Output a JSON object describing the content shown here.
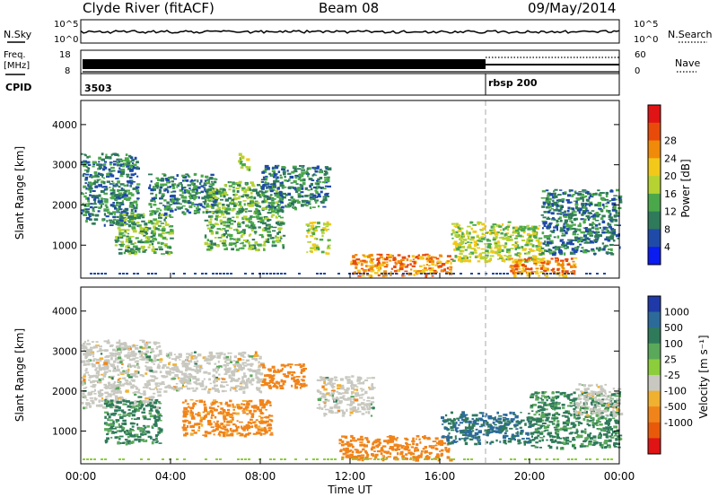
{
  "header": {
    "station": "Clyde River (fitACF)",
    "beam": "Beam 08",
    "date": "09/May/2014"
  },
  "top_panels": {
    "nsky_label": "N.Sky",
    "nsky_ticks": [
      "10^5",
      "10^0"
    ],
    "nsky_right_ticks": [
      "10^5",
      "10^0"
    ],
    "nsearch_label": "N.Search",
    "freq_label_1": "Freq.",
    "freq_label_2": "[MHz]",
    "freq_ticks": [
      "18",
      "8"
    ],
    "nave_ticks": [
      "60",
      "0"
    ],
    "nave_label": "Nave",
    "cpid_label": "CPID",
    "cpid_1": "3503",
    "cpid_2": "rbsp 200"
  },
  "axes": {
    "ylabel": "Slant Range [km]",
    "xlabel": "Time UT",
    "yticks": [
      "1000",
      "2000",
      "3000",
      "4000"
    ],
    "xticks": [
      "00:00",
      "04:00",
      "08:00",
      "12:00",
      "16:00",
      "20:00",
      "00:00"
    ]
  },
  "colorbars": {
    "power": {
      "label": "Power [dB]",
      "ticks": [
        "4",
        "8",
        "12",
        "16",
        "20",
        "24",
        "28"
      ],
      "colors": [
        "#0a1cf0",
        "#1f4aa8",
        "#2f7a5a",
        "#4aa84a",
        "#b5d232",
        "#f2c81a",
        "#f08a0a",
        "#e84a0a",
        "#e01414"
      ]
    },
    "velocity": {
      "label": "Velocity [m s⁻¹]",
      "ticks": [
        "1000",
        "500",
        "100",
        "25",
        "-25",
        "-100",
        "-500",
        "-1000"
      ],
      "colors": [
        "#1f3aa8",
        "#2c6a9a",
        "#2f7a5a",
        "#5aa85a",
        "#8ccd3c",
        "#c8c8c0",
        "#f0b030",
        "#f0841a",
        "#e85a0a",
        "#e01414"
      ]
    }
  },
  "chart_data": {
    "type": "heatmap",
    "x_unit": "hours UT",
    "y_unit": "km",
    "xlim": [
      0,
      24
    ],
    "ylim": [
      180,
      4600
    ],
    "panels": [
      {
        "name": "Power",
        "regions": [
          {
            "t0": 0.0,
            "t1": 2.5,
            "r0": 1500,
            "r1": 3300,
            "level": 10
          },
          {
            "t0": 1.5,
            "t1": 4.0,
            "r0": 800,
            "r1": 1800,
            "level": 16
          },
          {
            "t0": 3.0,
            "t1": 6.0,
            "r0": 1800,
            "r1": 2800,
            "level": 10
          },
          {
            "t0": 5.5,
            "t1": 9.0,
            "r0": 900,
            "r1": 2600,
            "level": 14
          },
          {
            "t0": 7.0,
            "t1": 7.5,
            "r0": 2900,
            "r1": 3300,
            "level": 18
          },
          {
            "t0": 8.0,
            "t1": 11.0,
            "r0": 1900,
            "r1": 3000,
            "level": 10
          },
          {
            "t0": 10.0,
            "t1": 11.0,
            "r0": 800,
            "r1": 1600,
            "level": 18
          },
          {
            "t0": 12.0,
            "t1": 16.5,
            "r0": 250,
            "r1": 800,
            "level": 26
          },
          {
            "t0": 16.5,
            "t1": 20.5,
            "r0": 600,
            "r1": 1600,
            "level": 20
          },
          {
            "t0": 20.5,
            "t1": 24.0,
            "r0": 800,
            "r1": 2400,
            "level": 12
          },
          {
            "t0": 19.0,
            "t1": 22.0,
            "r0": 250,
            "r1": 700,
            "level": 26
          }
        ]
      },
      {
        "name": "Velocity",
        "regions": [
          {
            "t0": 0.0,
            "t1": 3.5,
            "r0": 1600,
            "r1": 3300,
            "level": 0
          },
          {
            "t0": 1.0,
            "t1": 3.5,
            "r0": 700,
            "r1": 1800,
            "level": 150
          },
          {
            "t0": 3.5,
            "t1": 8.0,
            "r0": 2000,
            "r1": 3000,
            "level": 0
          },
          {
            "t0": 4.5,
            "t1": 8.5,
            "r0": 900,
            "r1": 1800,
            "level": -200
          },
          {
            "t0": 8.0,
            "t1": 10.0,
            "r0": 2100,
            "r1": 2700,
            "level": -300
          },
          {
            "t0": 10.5,
            "t1": 13.0,
            "r0": 1400,
            "r1": 2400,
            "level": 0
          },
          {
            "t0": 11.5,
            "t1": 16.5,
            "r0": 300,
            "r1": 900,
            "level": -300
          },
          {
            "t0": 16.0,
            "t1": 20.0,
            "r0": 700,
            "r1": 1500,
            "level": 300
          },
          {
            "t0": 20.0,
            "t1": 24.0,
            "r0": 600,
            "r1": 2000,
            "level": 150
          },
          {
            "t0": 22.0,
            "t1": 24.0,
            "r0": 1400,
            "r1": 2200,
            "level": 0
          }
        ]
      }
    ]
  }
}
